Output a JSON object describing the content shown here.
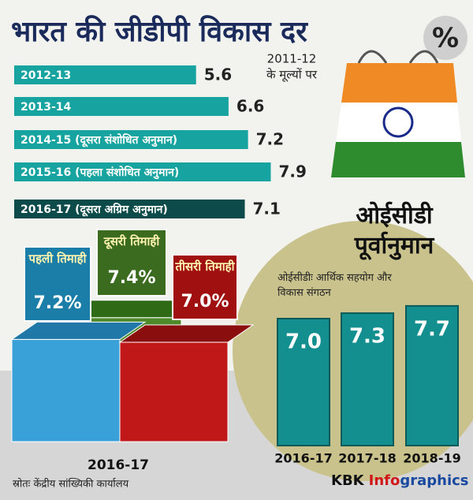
{
  "chart_data": [
    {
      "type": "hbar",
      "title": "भारत की जीडीपी विकास दर",
      "symbol": "%",
      "subtitle": [
        "2011-12",
        "के मूल्यों पर"
      ],
      "categories": [
        "2012-13",
        "2013-14",
        "2014-15 (दूसरा संशोधित अनुमान)",
        "2015-16 (पहला संशोधित अनुमान)",
        "2016-17 (दूसरा अग्रिम अनुमान)"
      ],
      "values": [
        5.6,
        6.6,
        7.2,
        7.9,
        7.1
      ],
      "colors": [
        "#17a3a0",
        "#17a3a0",
        "#17a3a0",
        "#17a3a0",
        "#0d4b4b"
      ]
    },
    {
      "type": "block",
      "xlabel": "2016-17",
      "categories": [
        "पहली तिमाही",
        "दूसरी तिमाही",
        "तीसरी तिमाही"
      ],
      "values": [
        7.2,
        7.4,
        7.0
      ],
      "value_labels": [
        "7.2%",
        "7.4%",
        "7.0%"
      ],
      "colors": [
        "#3aa0d8",
        "#4e8a2a",
        "#c01818"
      ]
    },
    {
      "type": "bar",
      "title": "ओईसीडी पूर्वानुमान",
      "subtitle": "ओईसीडीः आर्थिक सहयोग और विकास संगठन",
      "categories": [
        "2016-17",
        "2017-18",
        "2018-19"
      ],
      "values": [
        7.0,
        7.3,
        7.7
      ],
      "value_labels": [
        "7.0",
        "7.3",
        "7.7"
      ],
      "color": "#138f8f"
    }
  ],
  "source": "स्रोतः केंद्रीय सांख्यिकी कार्यालय",
  "credit": [
    "KBK",
    "Info",
    "graphics"
  ]
}
